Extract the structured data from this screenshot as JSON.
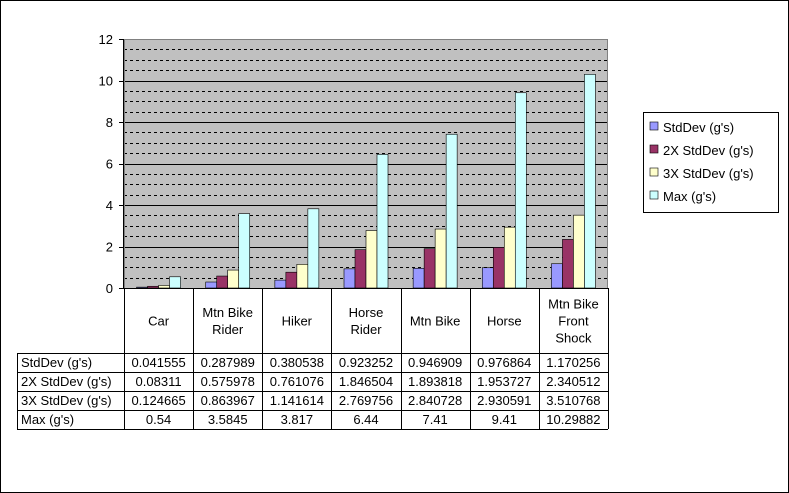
{
  "chart_data": {
    "type": "bar",
    "categories": [
      [
        "Car"
      ],
      [
        "Mtn Bike",
        "Rider"
      ],
      [
        "Hiker"
      ],
      [
        "Horse",
        "Rider"
      ],
      [
        "Mtn Bike"
      ],
      [
        "Horse"
      ],
      [
        "Mtn Bike",
        "Front",
        "Shock"
      ]
    ],
    "series": [
      {
        "name": "StdDev (g's)",
        "color": "#9999ff",
        "values": [
          0.041555,
          0.287989,
          0.380538,
          0.923252,
          0.946909,
          0.976864,
          1.170256
        ],
        "labels": [
          "0.041555",
          "0.287989",
          "0.380538",
          "0.923252",
          "0.946909",
          "0.976864",
          "1.170256"
        ]
      },
      {
        "name": "2X StdDev (g's)",
        "color": "#993366",
        "values": [
          0.08311,
          0.575978,
          0.761076,
          1.846504,
          1.893818,
          1.953727,
          2.340512
        ],
        "labels": [
          "0.08311",
          "0.575978",
          "0.761076",
          "1.846504",
          "1.893818",
          "1.953727",
          "2.340512"
        ]
      },
      {
        "name": "3X StdDev (g's)",
        "color": "#ffffcc",
        "values": [
          0.124665,
          0.863967,
          1.141614,
          2.769756,
          2.840728,
          2.930591,
          3.510768
        ],
        "labels": [
          "0.124665",
          "0.863967",
          "1.141614",
          "2.769756",
          "2.840728",
          "2.930591",
          "3.510768"
        ]
      },
      {
        "name": "Max (g's)",
        "color": "#ccffff",
        "values": [
          0.54,
          3.5845,
          3.817,
          6.44,
          7.41,
          9.41,
          10.29882
        ],
        "labels": [
          "0.54",
          "3.5845",
          "3.817",
          "6.44",
          "7.41",
          "9.41",
          "10.29882"
        ]
      }
    ],
    "yticks": [
      "0",
      "2",
      "4",
      "6",
      "8",
      "10",
      "12"
    ],
    "ylim": [
      0,
      12
    ],
    "grid": true,
    "plot_background": "#c0c0c0",
    "legend_position": "right",
    "data_table": true
  }
}
